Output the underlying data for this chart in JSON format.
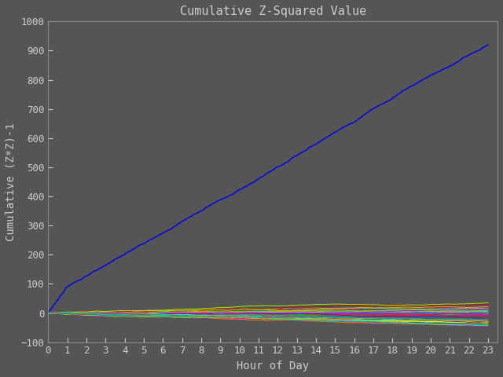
{
  "title": "Cumulative Z-Squared Value",
  "xlabel": "Hour of Day",
  "ylabel": "Cumulative (Z*Z)-1",
  "xlim": [
    0,
    23.5
  ],
  "ylim": [
    -100,
    1000
  ],
  "xticks": [
    0,
    1,
    2,
    3,
    4,
    5,
    6,
    7,
    8,
    9,
    10,
    11,
    12,
    13,
    14,
    15,
    16,
    17,
    18,
    19,
    20,
    21,
    22,
    23
  ],
  "yticks": [
    -100,
    0,
    100,
    200,
    300,
    400,
    500,
    600,
    700,
    800,
    900,
    1000
  ],
  "background_color": "#555555",
  "axes_color": "#555555",
  "text_color": "#cccccc",
  "spine_color": "#888888",
  "dominant_line_color": "#0000ee",
  "num_other_lines": 40,
  "seed_dominant": 7,
  "seed_others": 200,
  "title_fontsize": 11,
  "label_fontsize": 10,
  "tick_fontsize": 9
}
